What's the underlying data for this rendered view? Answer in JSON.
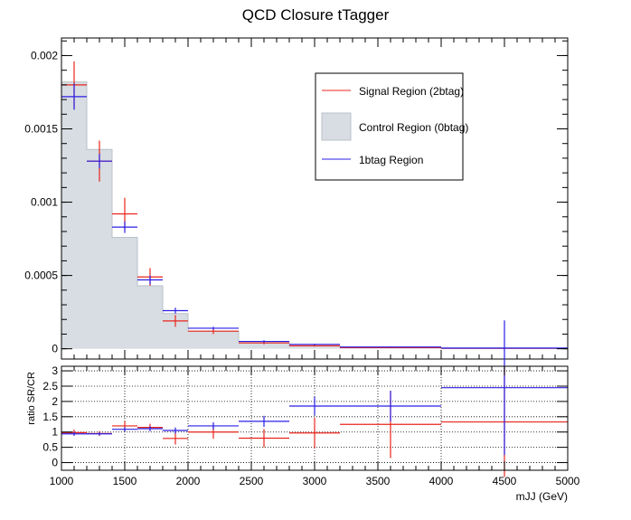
{
  "title": "QCD Closure tTagger",
  "colors": {
    "signal": "#e8241c",
    "control_fill": "#d7dde2",
    "control_line": "#b9c2c8",
    "onebtag": "#2b1fe6"
  },
  "chart_data": [
    {
      "type": "histogram",
      "title": "QCD Closure tTagger",
      "xlim": [
        1000,
        5000
      ],
      "ylim": [
        -7e-05,
        0.00212
      ],
      "yticks": [
        0,
        0.0005,
        0.001,
        0.0015,
        0.002
      ],
      "ytick_labels": [
        "0",
        "0.0005",
        "0.001",
        "0.0015",
        "0.002"
      ],
      "legend_placement": "top-right",
      "bin_edges": [
        1000,
        1200,
        1400,
        1600,
        1800,
        2000,
        2400,
        2800,
        3200,
        4000,
        5000
      ],
      "series": [
        {
          "name": "Signal Region (2btag)",
          "style": "errorbar",
          "values": [
            0.0018,
            0.00128,
            0.00092,
            0.00049,
            0.00019,
            0.00012,
            4e-05,
            2e-05,
            8e-06,
            3e-06
          ],
          "errors": [
            0.00016,
            0.00014,
            0.00011,
            6e-05,
            4e-05,
            2e-05,
            1e-05,
            5e-06,
            3e-06,
            2e-06
          ]
        },
        {
          "name": "Control Region (0btag)",
          "style": "filled",
          "values": [
            0.00182,
            0.00136,
            0.00076,
            0.00043,
            0.00024,
            0.00012,
            5e-05,
            2e-05,
            7e-06,
            2e-06
          ]
        },
        {
          "name": "1btag Region",
          "style": "errorbar",
          "values": [
            0.00172,
            0.00128,
            0.00083,
            0.00047,
            0.00026,
            0.00014,
            5e-05,
            3e-05,
            1.2e-05,
            5e-06
          ],
          "errors": [
            9e-05,
            5e-05,
            4e-05,
            3e-05,
            2e-05,
            1e-05,
            8e-06,
            5e-06,
            3e-06,
            3e-06
          ]
        }
      ]
    },
    {
      "type": "ratio",
      "ylabel": "ratio SR/CR",
      "xlabel": "mJJ (GeV)",
      "xlim": [
        1000,
        5000
      ],
      "ylim": [
        -0.25,
        3.15
      ],
      "grid": true,
      "xticks": [
        1000,
        1500,
        2000,
        2500,
        3000,
        3500,
        4000,
        4500,
        5000
      ],
      "xtick_labels": [
        "1000",
        "1500",
        "2000",
        "2500",
        "3000",
        "3500",
        "4000",
        "4500",
        "5000"
      ],
      "yticks": [
        0,
        0.5,
        1,
        1.5,
        2,
        2.5,
        3
      ],
      "ytick_labels": [
        "0",
        "0.5",
        "1",
        "1.5",
        "2",
        "2.5",
        "3"
      ],
      "bin_edges": [
        1000,
        1200,
        1400,
        1600,
        1800,
        2000,
        2400,
        2800,
        3200,
        4000,
        5000
      ],
      "series": [
        {
          "name": "Signal Region (2btag)",
          "values": [
            0.98,
            0.95,
            1.2,
            1.15,
            0.79,
            1.0,
            0.8,
            0.97,
            1.25,
            1.33
          ],
          "errors": [
            0.1,
            0.08,
            0.15,
            0.12,
            0.2,
            0.22,
            0.3,
            0.5,
            1.1,
            1.8
          ]
        },
        {
          "name": "1btag Region",
          "values": [
            0.94,
            0.94,
            1.09,
            1.11,
            1.05,
            1.2,
            1.35,
            1.85,
            1.85,
            2.45
          ],
          "errors": [
            0.06,
            0.05,
            0.07,
            0.08,
            0.1,
            0.12,
            0.18,
            0.3,
            0.5,
            2.2
          ]
        }
      ]
    }
  ]
}
